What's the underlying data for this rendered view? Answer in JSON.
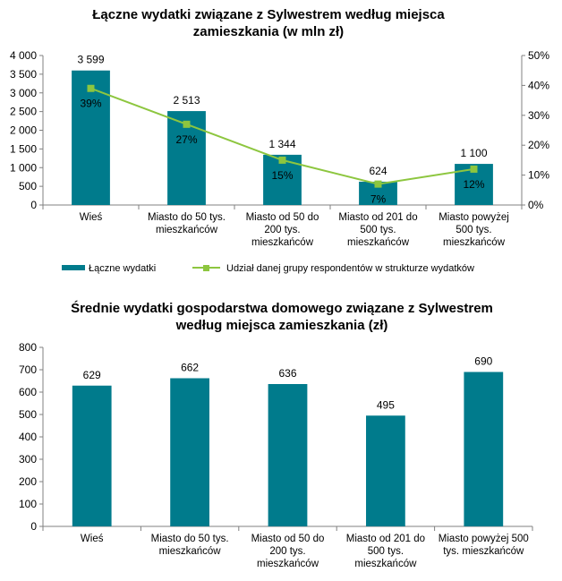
{
  "colors": {
    "bar": "#007B8C",
    "line": "#8DC63F",
    "axis": "#808080",
    "marker": "#8DC63F"
  },
  "chart_data": [
    {
      "type": "bar",
      "title_line1": "Łączne wydatki związane z Sylwestrem według miejsca",
      "title_line2": "zamieszkania (w mln zł)",
      "categories": [
        [
          "Wieś"
        ],
        [
          "Miasto do 50 tys.",
          "mieszkańców"
        ],
        [
          "Miasto od 50 do",
          "200 tys.",
          "mieszkańców"
        ],
        [
          "Miasto od 201 do",
          "500 tys.",
          "mieszkańców"
        ],
        [
          "Miasto powyżej",
          "500 tys.",
          "mieszkańców"
        ]
      ],
      "values": [
        3599,
        2513,
        1344,
        624,
        1100
      ],
      "value_labels": [
        "3 599",
        "2 513",
        "1 344",
        "624",
        "1 100"
      ],
      "ylim": [
        0,
        4000
      ],
      "yticks": [
        0,
        500,
        1000,
        1500,
        2000,
        2500,
        3000,
        3500,
        4000
      ],
      "ytick_labels": [
        "0",
        "500",
        "1 000",
        "1 500",
        "2 000",
        "2 500",
        "3 000",
        "3 500",
        "4 000"
      ],
      "series_line": {
        "name": "Udział danej grupy respondentów  w strukturze wydatków",
        "values": [
          39,
          27,
          15,
          7,
          12
        ],
        "value_labels": [
          "39%",
          "27%",
          "15%",
          "7%",
          "12%"
        ]
      },
      "y2lim": [
        0,
        50
      ],
      "y2ticks": [
        0,
        10,
        20,
        30,
        40,
        50
      ],
      "y2tick_labels": [
        "0%",
        "10%",
        "20%",
        "30%",
        "40%",
        "50%"
      ],
      "legend_bar": "Łączne wydatki",
      "legend_line": "Udział danej grupy respondentów  w strukturze wydatków"
    },
    {
      "type": "bar",
      "title_line1": "Średnie wydatki gospodarstwa domowego związane z Sylwestrem",
      "title_line2": "według miejsca zamieszkania (zł)",
      "categories": [
        [
          "Wieś"
        ],
        [
          "Miasto do 50 tys.",
          "mieszkańców"
        ],
        [
          "Miasto od 50 do",
          "200 tys.",
          "mieszkańców"
        ],
        [
          "Miasto od 201 do",
          "500 tys.",
          "mieszkańców"
        ],
        [
          "Miasto powyżej 500",
          "tys. mieszkańców"
        ]
      ],
      "values": [
        629,
        662,
        636,
        495,
        690
      ],
      "value_labels": [
        "629",
        "662",
        "636",
        "495",
        "690"
      ],
      "ylim": [
        0,
        800
      ],
      "yticks": [
        0,
        100,
        200,
        300,
        400,
        500,
        600,
        700,
        800
      ],
      "ytick_labels": [
        "0",
        "100",
        "200",
        "300",
        "400",
        "500",
        "600",
        "700",
        "800"
      ]
    }
  ]
}
